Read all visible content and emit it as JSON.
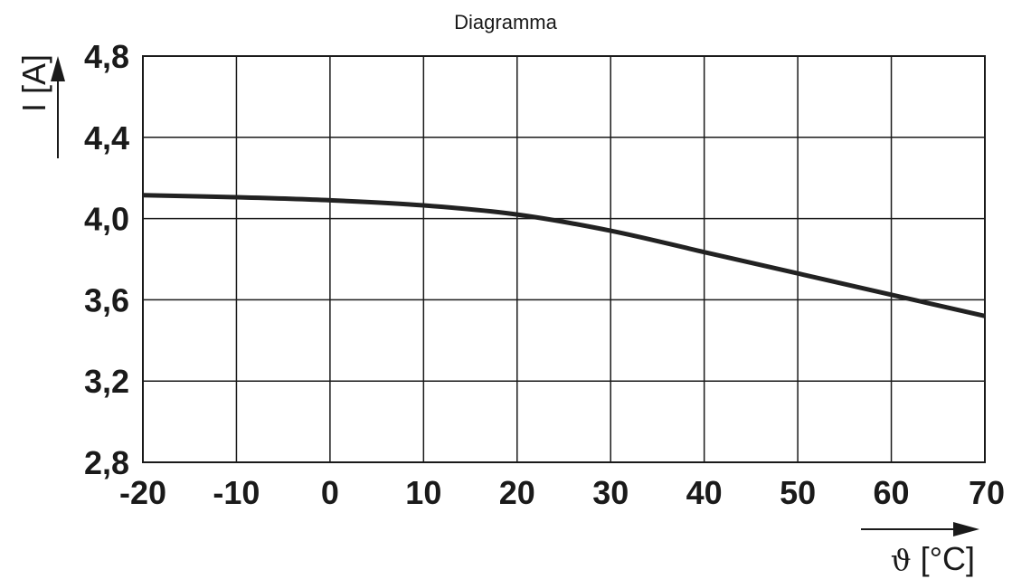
{
  "chart_data": {
    "type": "line",
    "title": "Diagramma",
    "xlabel": "ϑ [°C]",
    "ylabel": "I [A]",
    "xlim": [
      -20,
      70
    ],
    "ylim": [
      2.8,
      4.8
    ],
    "x_ticks": [
      "-20",
      "-10",
      "0",
      "10",
      "20",
      "30",
      "40",
      "50",
      "60",
      "70"
    ],
    "y_ticks": [
      "2,8",
      "3,2",
      "3,6",
      "4,0",
      "4,4",
      "4,8"
    ],
    "grid": true,
    "series": [
      {
        "x": [
          -20,
          -10,
          0,
          10,
          20,
          30,
          40,
          50,
          60,
          70
        ],
        "y": [
          4.115,
          4.105,
          4.09,
          4.065,
          4.02,
          3.94,
          3.835,
          3.73,
          3.625,
          3.52
        ]
      }
    ]
  },
  "colors": {
    "line": "#222222",
    "grid": "#1a1a1a",
    "text": "#1a1a1a"
  }
}
